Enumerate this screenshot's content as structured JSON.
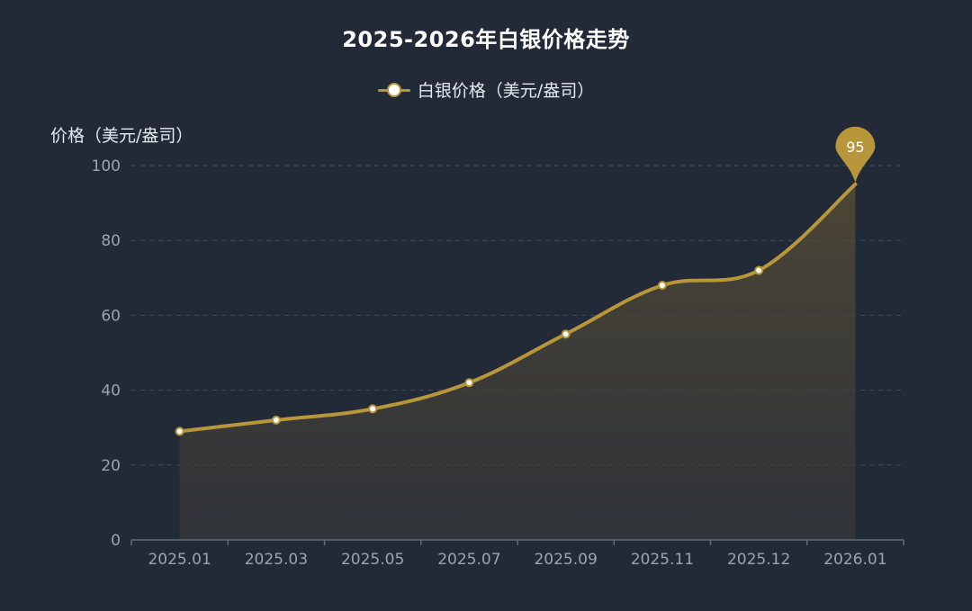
{
  "chart_data": {
    "type": "line",
    "title": "2025-2026年白银价格走势",
    "ylabel": "价格（美元/盎司）",
    "xlabel": "",
    "categories": [
      "2025.01",
      "2025.03",
      "2025.05",
      "2025.07",
      "2025.09",
      "2025.11",
      "2025.12",
      "2026.01"
    ],
    "series": [
      {
        "name": "白银价格（美元/盎司）",
        "values": [
          29,
          32,
          35,
          42,
          55,
          68,
          72,
          95
        ],
        "color": "#b8963a"
      }
    ],
    "ylim": [
      0,
      100
    ],
    "yticks": [
      0,
      20,
      40,
      60,
      80,
      100
    ],
    "grid": true,
    "smooth": true,
    "area_fill": true,
    "legend_position": "top-center",
    "max_marker": {
      "label": "95",
      "value": 95,
      "category": "2026.01"
    }
  },
  "colors": {
    "background": "#222a37",
    "series": "#b8963a",
    "grid": "#3e4e5a",
    "axis": "#5f6c7c"
  }
}
